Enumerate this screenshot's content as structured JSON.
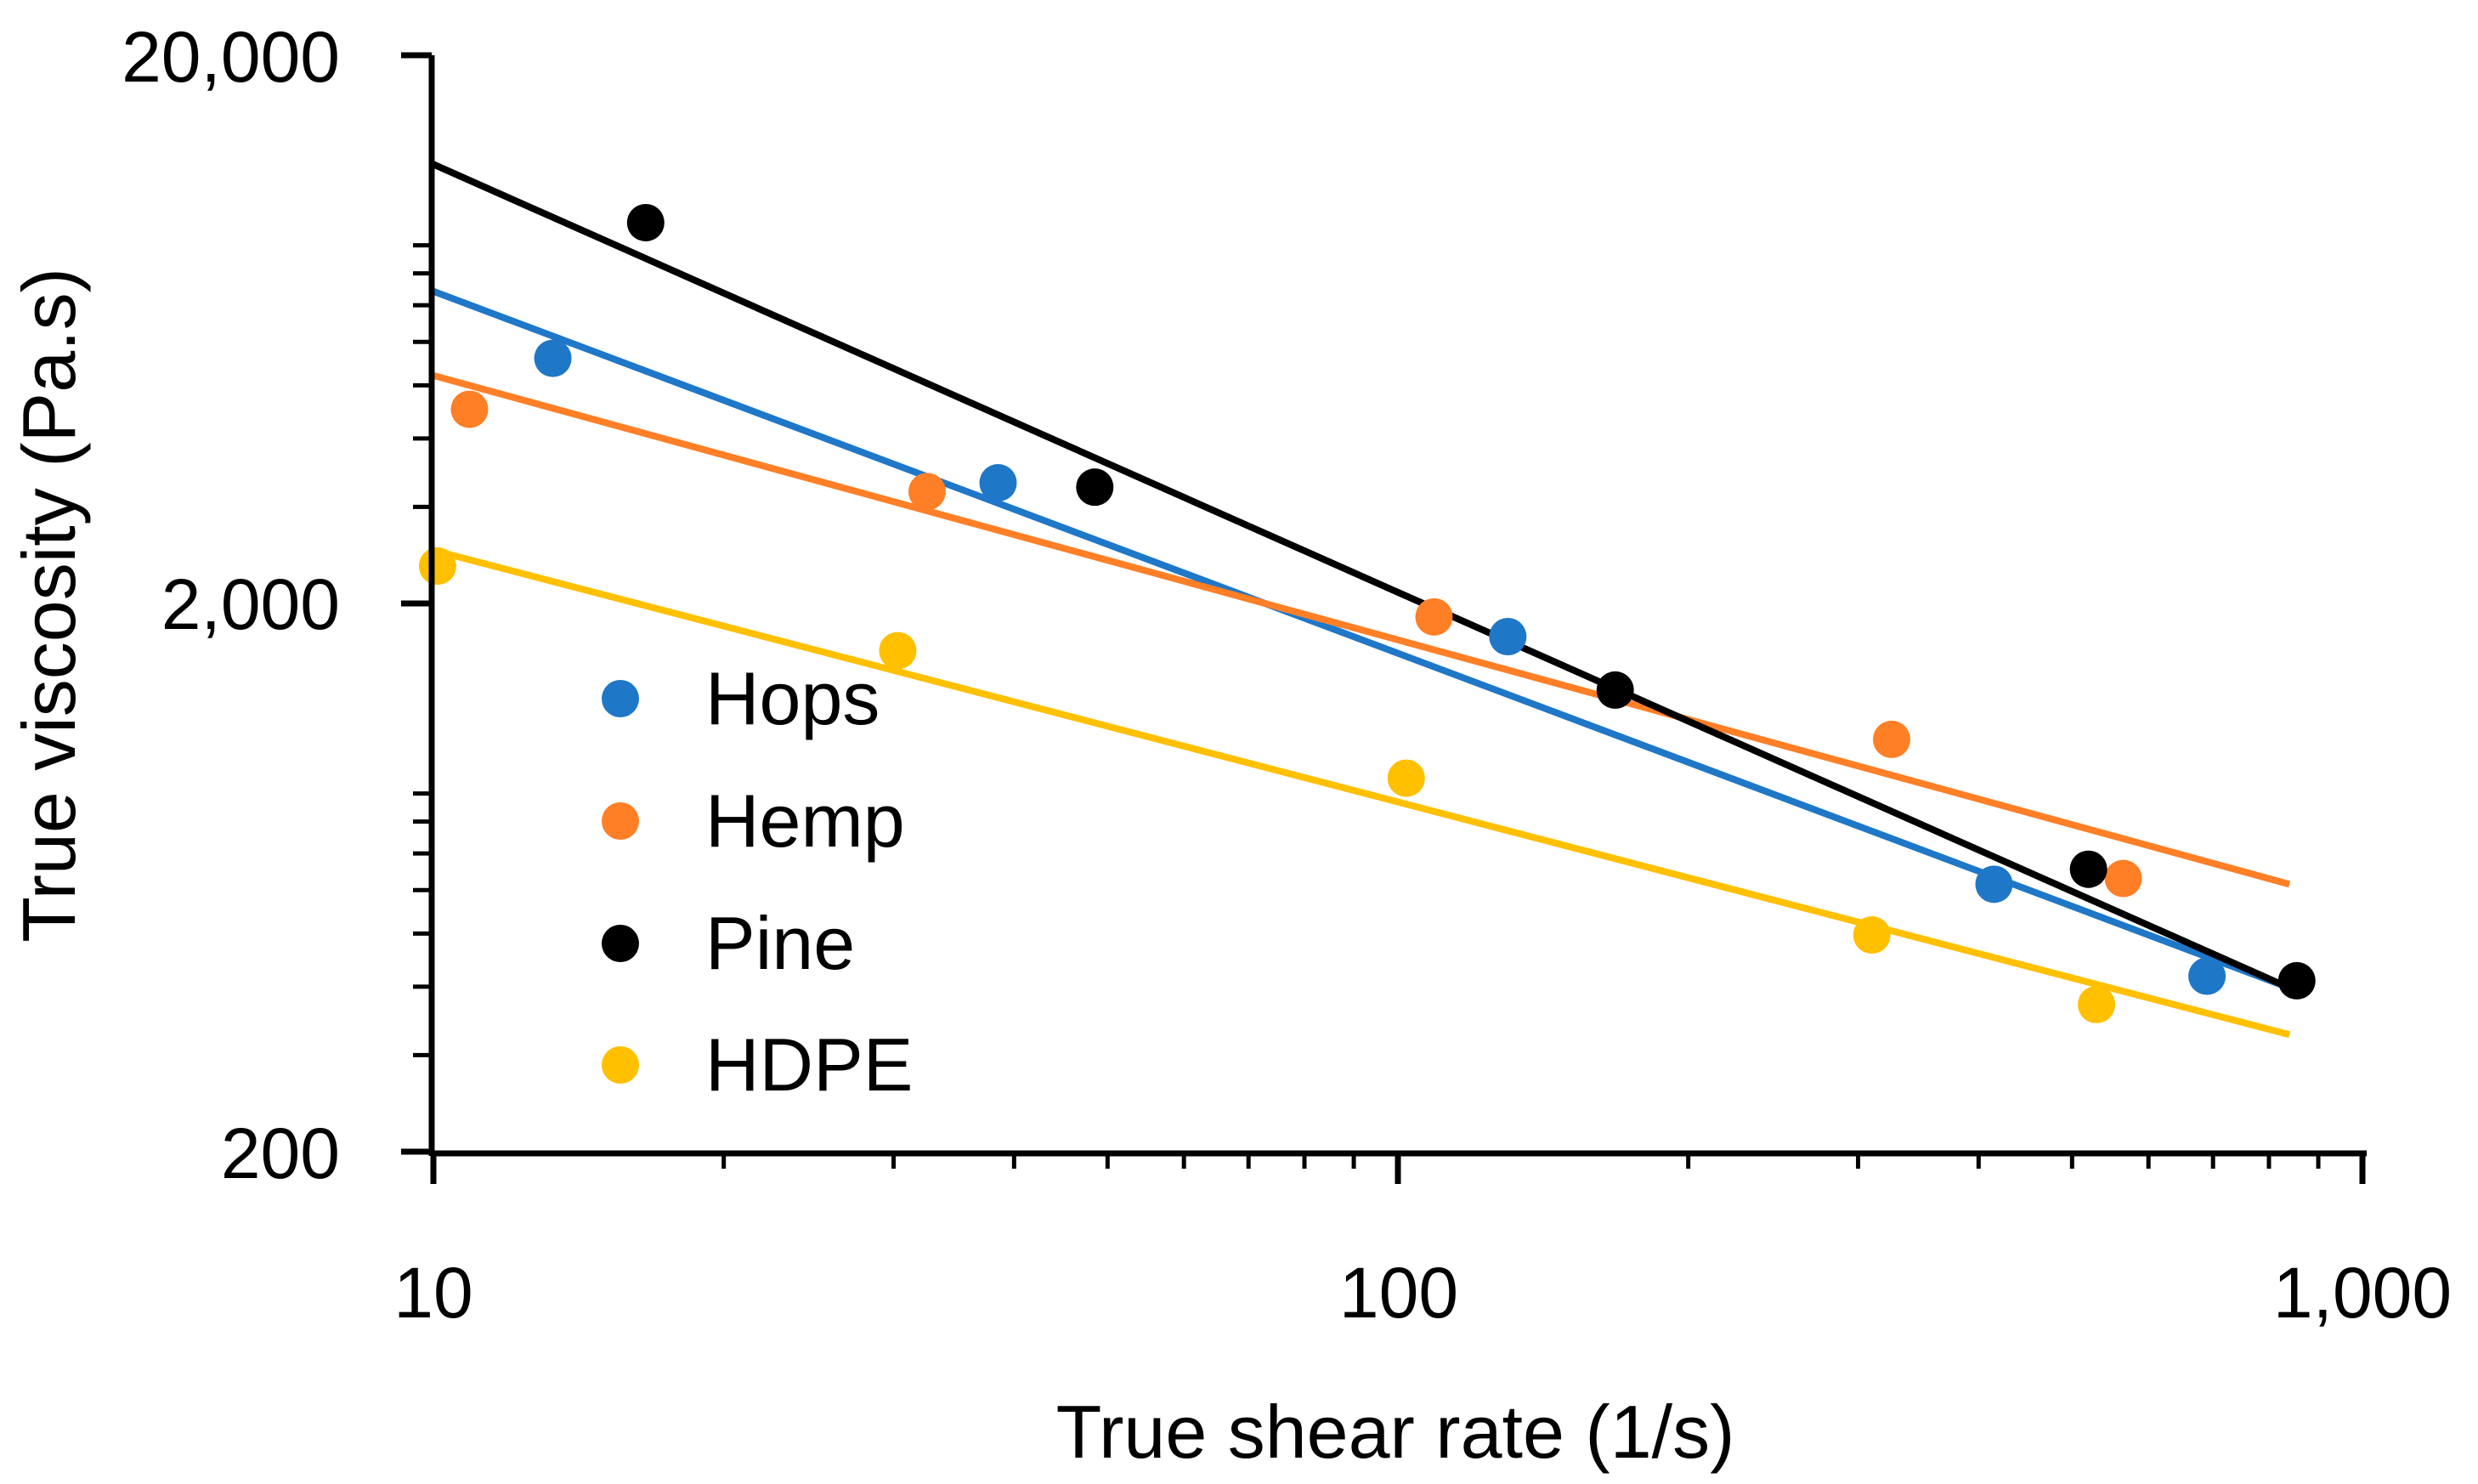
{
  "chart_data": {
    "type": "scatter",
    "title": "",
    "xlabel": "True shear rate (1/s)",
    "ylabel": "True viscosity (Pa.s)",
    "xscale": "log",
    "yscale": "log",
    "xlim": [
      10,
      1000
    ],
    "ylim": [
      200,
      20000
    ],
    "x_ticks": [
      {
        "value": 10,
        "label": "10"
      },
      {
        "value": 100,
        "label": "100"
      },
      {
        "value": 1000,
        "label": "1,000"
      }
    ],
    "y_ticks": [
      {
        "value": 200,
        "label": "200"
      },
      {
        "value": 2000,
        "label": "2,000"
      },
      {
        "value": 20000,
        "label": "20,000"
      }
    ],
    "legend_position": "lower-left",
    "grid": false,
    "series": [
      {
        "name": "Hops",
        "color": "#1F77C8",
        "points": [
          {
            "x": 13.3,
            "y": 5600
          },
          {
            "x": 38.5,
            "y": 3320
          },
          {
            "x": 130,
            "y": 1740
          },
          {
            "x": 415,
            "y": 615
          },
          {
            "x": 690,
            "y": 418
          }
        ],
        "trendline": {
          "x": [
            10,
            840
          ],
          "y": [
            7420,
            398
          ]
        }
      },
      {
        "name": "Hemp",
        "color": "#FF7F27",
        "points": [
          {
            "x": 10.9,
            "y": 4520
          },
          {
            "x": 32.5,
            "y": 3200
          },
          {
            "x": 109,
            "y": 1890
          },
          {
            "x": 325,
            "y": 1130
          },
          {
            "x": 565,
            "y": 630
          }
        ],
        "trendline": {
          "x": [
            10,
            840
          ],
          "y": [
            5210,
            615
          ]
        }
      },
      {
        "name": "Pine",
        "color": "#000000",
        "points": [
          {
            "x": 16.6,
            "y": 9900
          },
          {
            "x": 48.5,
            "y": 3260
          },
          {
            "x": 168,
            "y": 1390
          },
          {
            "x": 520,
            "y": 655
          },
          {
            "x": 855,
            "y": 410
          }
        ],
        "trendline": {
          "x": [
            10,
            840
          ],
          "y": [
            12650,
            398
          ]
        }
      },
      {
        "name": "HDPE",
        "color": "#FFC000",
        "points": [
          {
            "x": 10.1,
            "y": 2340
          },
          {
            "x": 30.3,
            "y": 1640
          },
          {
            "x": 102,
            "y": 960
          },
          {
            "x": 310,
            "y": 497
          },
          {
            "x": 530,
            "y": 371
          }
        ],
        "trendline": {
          "x": [
            10,
            840
          ],
          "y": [
            2500,
            327
          ]
        }
      }
    ]
  }
}
